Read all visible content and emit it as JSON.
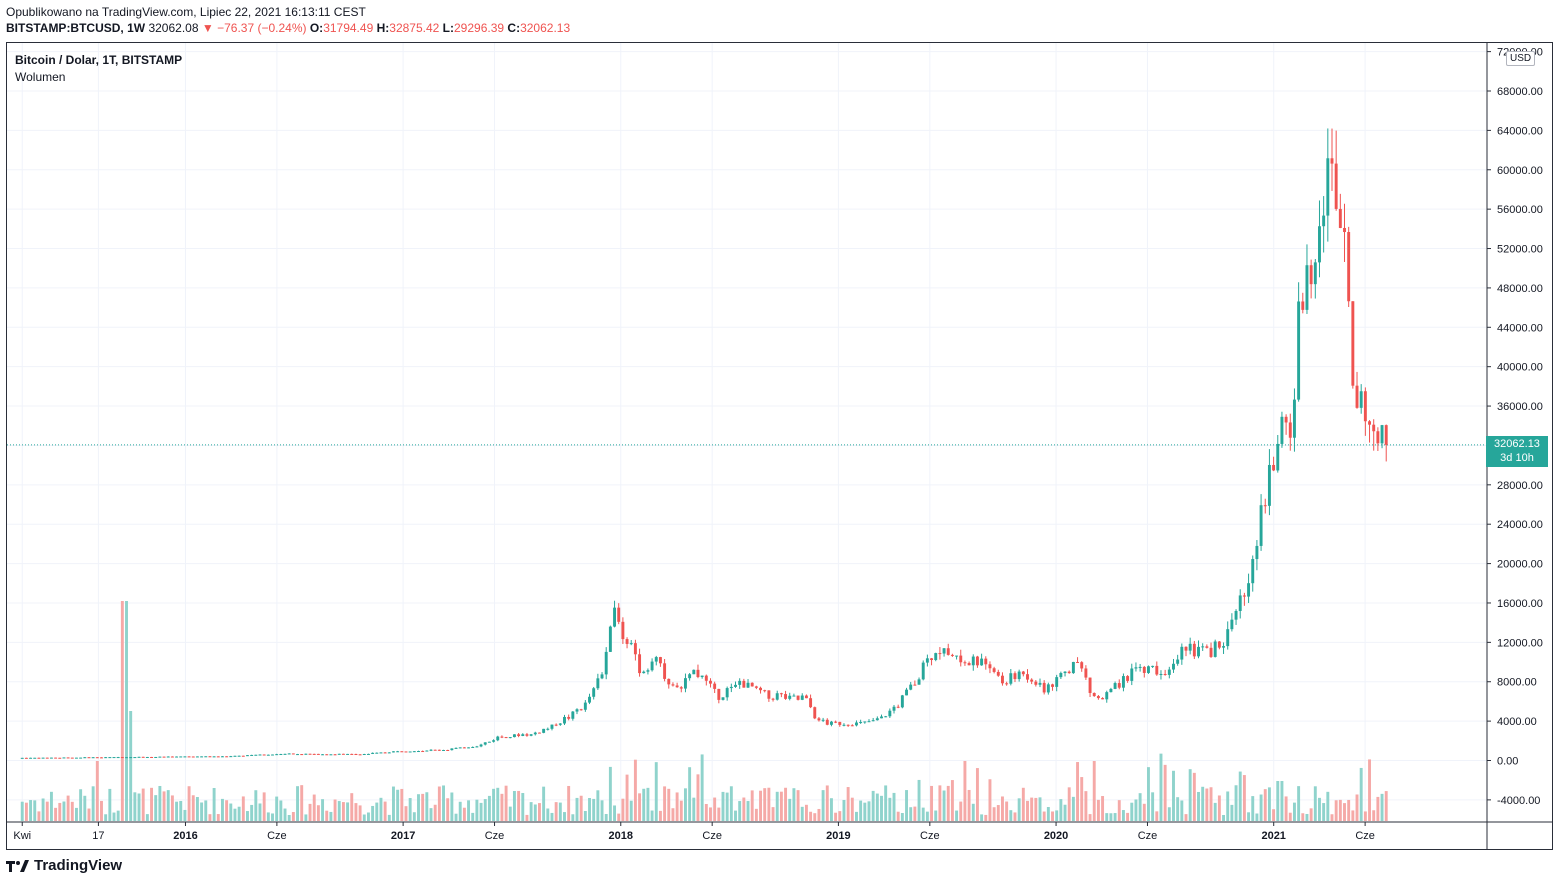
{
  "header": {
    "published": "Opublikowano na TradingView.com, Lipiec 22, 2021 16:13:11 CEST",
    "symbol": "BITSTAMP:BTCUSD, 1W",
    "last": "32062.08",
    "arrow": "▼",
    "change": "−76.37 (−0.24%)",
    "o_label": "O:",
    "o_value": "31794.49",
    "h_label": "H:",
    "h_value": "32875.42",
    "l_label": "L:",
    "l_value": "29296.39",
    "c_label": "C:",
    "c_value": "32062.13"
  },
  "chart_title": "Bitcoin / Dolar, 1T, BITSTAMP",
  "volume_title": "Wolumen",
  "currency_badge": "USD",
  "price_badge": {
    "price": "32062.13",
    "countdown": "3d 10h"
  },
  "footer": {
    "brand": "TradingView",
    "logo_icon": "tradingview-logo-icon"
  },
  "colors": {
    "up": "#26a69a",
    "down": "#ef5350",
    "up_volume": "#8fd3cc",
    "down_volume": "#f5a9a7",
    "grid": "#f0f3fa"
  },
  "chart_data": {
    "type": "candlestick",
    "title": "Bitcoin / Dolar, 1T, BITSTAMP",
    "y_ticks": [
      "72000.00",
      "68000.00",
      "64000.00",
      "60000.00",
      "56000.00",
      "52000.00",
      "48000.00",
      "44000.00",
      "40000.00",
      "36000.00",
      "32000.00",
      "28000.00",
      "24000.00",
      "20000.00",
      "16000.00",
      "12000.00",
      "8000.00",
      "4000.00",
      "0.00",
      "-4000.00"
    ],
    "x_ticks": [
      {
        "label": "Kwi",
        "t": 2015.25
      },
      {
        "label": "17",
        "t": 2015.6
      },
      {
        "label": "2016",
        "t": 2016.0
      },
      {
        "label": "Cze",
        "t": 2016.42
      },
      {
        "label": "2017",
        "t": 2017.0
      },
      {
        "label": "Cze",
        "t": 2017.42
      },
      {
        "label": "2018",
        "t": 2018.0
      },
      {
        "label": "Cze",
        "t": 2018.42
      },
      {
        "label": "2019",
        "t": 2019.0
      },
      {
        "label": "Cze",
        "t": 2019.42
      },
      {
        "label": "2020",
        "t": 2020.0
      },
      {
        "label": "Cze",
        "t": 2020.42
      },
      {
        "label": "2021",
        "t": 2021.0
      },
      {
        "label": "Cze",
        "t": 2021.42
      }
    ],
    "ylim": [
      -5000,
      72000
    ],
    "last_close": 32062.13,
    "price_anchors": [
      [
        2015.25,
        260
      ],
      [
        2015.9,
        380
      ],
      [
        2016.2,
        420
      ],
      [
        2016.45,
        700
      ],
      [
        2016.55,
        650
      ],
      [
        2016.8,
        640
      ],
      [
        2017.0,
        950
      ],
      [
        2017.2,
        1100
      ],
      [
        2017.35,
        1500
      ],
      [
        2017.45,
        2500
      ],
      [
        2017.6,
        2600
      ],
      [
        2017.75,
        4300
      ],
      [
        2017.85,
        5800
      ],
      [
        2017.93,
        10000
      ],
      [
        2017.96,
        16000
      ],
      [
        2017.99,
        13500
      ],
      [
        2018.05,
        11500
      ],
      [
        2018.1,
        8500
      ],
      [
        2018.15,
        10500
      ],
      [
        2018.25,
        7000
      ],
      [
        2018.35,
        9000
      ],
      [
        2018.45,
        6500
      ],
      [
        2018.55,
        7800
      ],
      [
        2018.7,
        6500
      ],
      [
        2018.85,
        6300
      ],
      [
        2018.9,
        4000
      ],
      [
        2019.0,
        3700
      ],
      [
        2019.15,
        3800
      ],
      [
        2019.25,
        5000
      ],
      [
        2019.35,
        8000
      ],
      [
        2019.45,
        11500
      ],
      [
        2019.5,
        10500
      ],
      [
        2019.65,
        10000
      ],
      [
        2019.75,
        8000
      ],
      [
        2019.85,
        9000
      ],
      [
        2019.95,
        7200
      ],
      [
        2020.1,
        9800
      ],
      [
        2020.18,
        6000
      ],
      [
        2020.22,
        6500
      ],
      [
        2020.35,
        9000
      ],
      [
        2020.5,
        9200
      ],
      [
        2020.6,
        11500
      ],
      [
        2020.7,
        10800
      ],
      [
        2020.8,
        13000
      ],
      [
        2020.88,
        18500
      ],
      [
        2020.95,
        26000
      ],
      [
        2021.02,
        33000
      ],
      [
        2021.08,
        34000
      ],
      [
        2021.12,
        47000
      ],
      [
        2021.17,
        50000
      ],
      [
        2021.22,
        57500
      ],
      [
        2021.28,
        59000
      ],
      [
        2021.33,
        55000
      ],
      [
        2021.37,
        37000
      ],
      [
        2021.42,
        36000
      ],
      [
        2021.48,
        34000
      ],
      [
        2021.53,
        32062
      ]
    ],
    "volume_spikes": [
      [
        2015.6,
        60
      ],
      [
        2015.72,
        220
      ],
      [
        2015.75,
        110
      ],
      [
        2017.95,
        55
      ],
      [
        2020.18,
        60
      ],
      [
        2021.03,
        40
      ]
    ]
  }
}
